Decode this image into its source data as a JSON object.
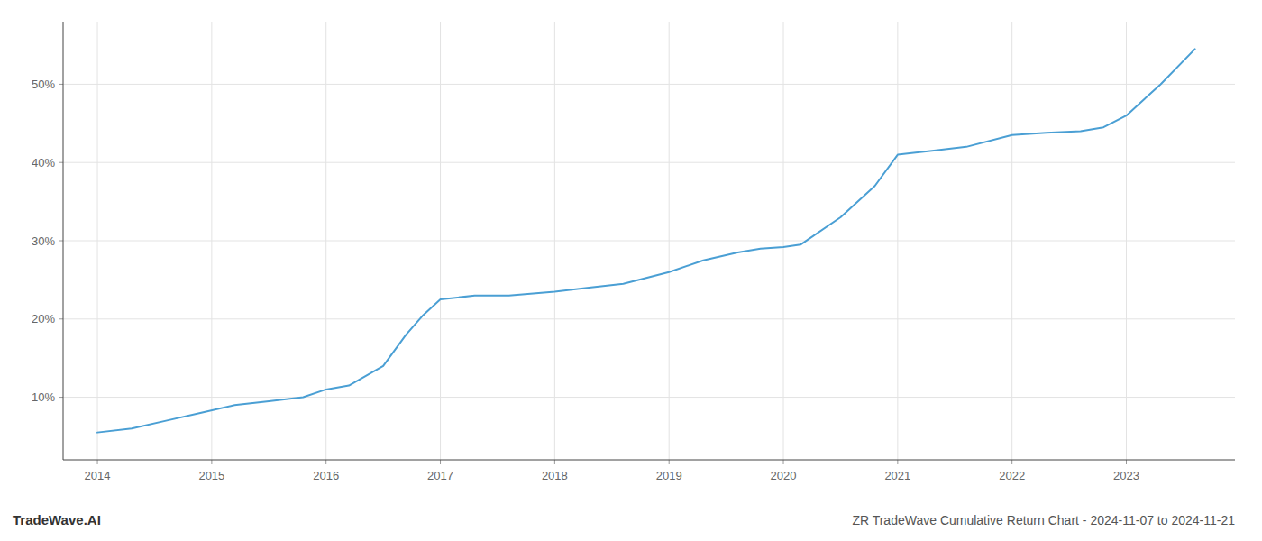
{
  "chart_data": {
    "type": "line",
    "title": "ZR TradeWave Cumulative Return Chart - 2024-11-07 to 2024-11-21",
    "annotations": [
      "TradeWave.AI"
    ],
    "color": "#4a9fd4",
    "grid": true,
    "x": [
      2014.0,
      2014.3,
      2014.6,
      2014.9,
      2015.2,
      2015.5,
      2015.8,
      2016.0,
      2016.2,
      2016.5,
      2016.7,
      2016.85,
      2017.0,
      2017.3,
      2017.6,
      2018.0,
      2018.3,
      2018.6,
      2019.0,
      2019.3,
      2019.6,
      2019.8,
      2020.0,
      2020.15,
      2020.5,
      2020.8,
      2021.0,
      2021.3,
      2021.6,
      2022.0,
      2022.3,
      2022.6,
      2022.8,
      2023.0,
      2023.3,
      2023.6
    ],
    "values": [
      5.5,
      6.0,
      7.0,
      8.0,
      9.0,
      9.5,
      10.0,
      11.0,
      11.5,
      14.0,
      18.0,
      20.5,
      22.5,
      23.0,
      23.0,
      23.5,
      24.0,
      24.5,
      26.0,
      27.5,
      28.5,
      29.0,
      29.2,
      29.5,
      33.0,
      37.0,
      41.0,
      41.5,
      42.0,
      43.5,
      43.8,
      44.0,
      44.5,
      46.0,
      50.0,
      54.5
    ],
    "xlim": [
      2013.7,
      2023.95
    ],
    "ylim": [
      2.0,
      58.0
    ],
    "xticks": [
      2014,
      2015,
      2016,
      2017,
      2018,
      2019,
      2020,
      2021,
      2022,
      2023
    ],
    "yticks": [
      {
        "value": 10,
        "label": "10%"
      },
      {
        "value": 20,
        "label": "20%"
      },
      {
        "value": 30,
        "label": "30%"
      },
      {
        "value": 40,
        "label": "40%"
      },
      {
        "value": 50,
        "label": "50%"
      }
    ]
  }
}
